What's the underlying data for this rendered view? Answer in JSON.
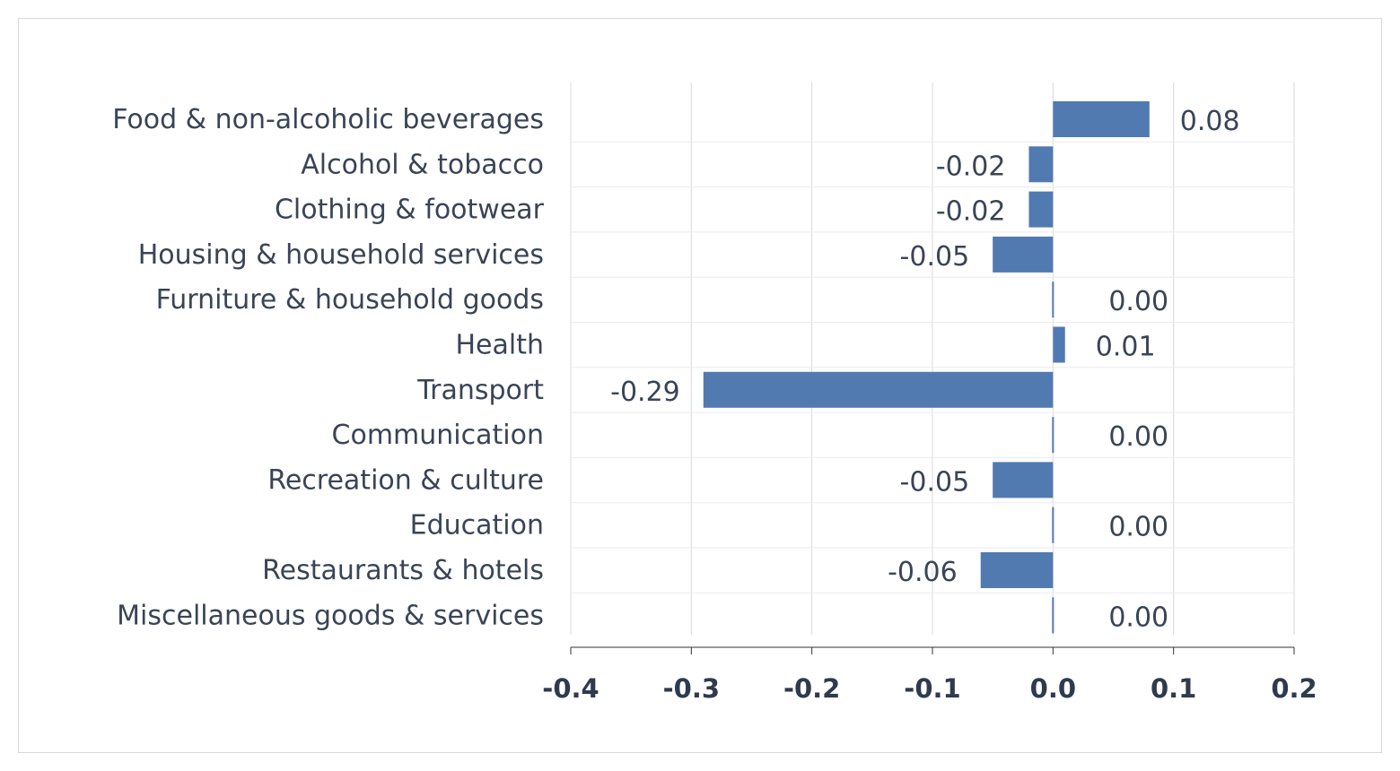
{
  "chart_data": {
    "type": "bar",
    "orientation": "horizontal",
    "title": "",
    "xlabel": "",
    "ylabel": "",
    "categories": [
      "Food & non-alcoholic beverages",
      "Alcohol & tobacco",
      "Clothing & footwear",
      "Housing & household services",
      "Furniture & household goods",
      "Health",
      "Transport",
      "Communication",
      "Recreation & culture",
      "Education",
      "Restaurants & hotels",
      "Miscellaneous goods & services"
    ],
    "values": [
      0.08,
      -0.02,
      -0.02,
      -0.05,
      0.0,
      0.01,
      -0.29,
      0.0,
      -0.05,
      0.0,
      -0.06,
      0.0
    ],
    "value_labels": [
      "0.08",
      "-0.02",
      "-0.02",
      "-0.05",
      "0.00",
      "0.01",
      "-0.29",
      "0.00",
      "-0.05",
      "0.00",
      "-0.06",
      "0.00"
    ],
    "xlim": [
      -0.4,
      0.2
    ],
    "xticks": [
      -0.4,
      -0.3,
      -0.2,
      -0.1,
      0.0,
      0.1,
      0.2
    ],
    "xtick_labels": [
      "-0.4",
      "-0.3",
      "-0.2",
      "-0.1",
      "0.0",
      "0.1",
      "0.2"
    ],
    "grid": true,
    "legend": "none",
    "bar_color": "#517ab0"
  }
}
